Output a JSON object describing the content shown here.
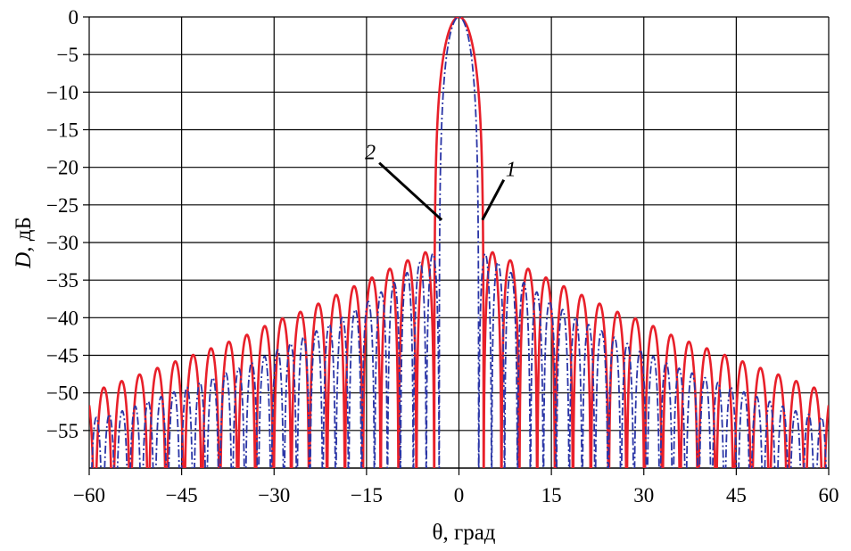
{
  "chart_data": {
    "type": "line",
    "xlabel": "θ, град",
    "ylabel_italic": "D",
    "ylabel_rest": ", дБ",
    "xlim": [
      -60,
      60
    ],
    "ylim": [
      -60,
      0
    ],
    "x_ticks": [
      -60,
      -45,
      -30,
      -15,
      0,
      15,
      30,
      45,
      60
    ],
    "x_tick_labels": [
      "−60",
      "−45",
      "−30",
      "−15",
      "0",
      "15",
      "30",
      "45",
      "60"
    ],
    "y_ticks": [
      0,
      -5,
      -10,
      -15,
      -20,
      -25,
      -30,
      -35,
      -40,
      -45,
      -50,
      -55
    ],
    "y_tick_labels": [
      "0",
      "−5",
      "−10",
      "−15",
      "−20",
      "−25",
      "−30",
      "−35",
      "−40",
      "−45",
      "−50",
      "−55"
    ],
    "grid": true,
    "series": [
      {
        "name": "1",
        "color": "#e8202a",
        "style": "solid",
        "mainlobe_first_null_deg": 4.0,
        "sidelobe_spacing_deg": 2.9,
        "sidelobe_peaks": {
          "theta_abs": [
            5.5,
            10,
            15,
            20,
            25,
            30,
            35,
            40,
            45,
            50,
            55,
            60
          ],
          "level_db": [
            -31.3,
            -33,
            -35,
            -37,
            -39,
            -40.5,
            -42.5,
            -44,
            -45.5,
            -47,
            -48.5,
            -50
          ]
        }
      },
      {
        "name": "2",
        "color": "#2a35a6",
        "style": "dash-dot",
        "mainlobe_first_null_deg": 3.2,
        "sidelobe_spacing_deg": 2.1,
        "sidelobe_peaks": {
          "theta_abs": [
            4.5,
            10,
            15,
            20,
            25,
            30,
            35,
            40,
            45,
            50,
            55,
            60
          ],
          "level_db": [
            -31.5,
            -35,
            -38,
            -40.5,
            -42.5,
            -44.5,
            -46.5,
            -48,
            -49.5,
            -51,
            -52.5,
            -53.5
          ]
        }
      }
    ],
    "annotations": [
      {
        "text": "1",
        "series": "1",
        "anchor_theta": 3.8,
        "anchor_db": -27
      },
      {
        "text": "2",
        "series": "2",
        "anchor_theta": -2.8,
        "anchor_db": -27
      }
    ]
  }
}
